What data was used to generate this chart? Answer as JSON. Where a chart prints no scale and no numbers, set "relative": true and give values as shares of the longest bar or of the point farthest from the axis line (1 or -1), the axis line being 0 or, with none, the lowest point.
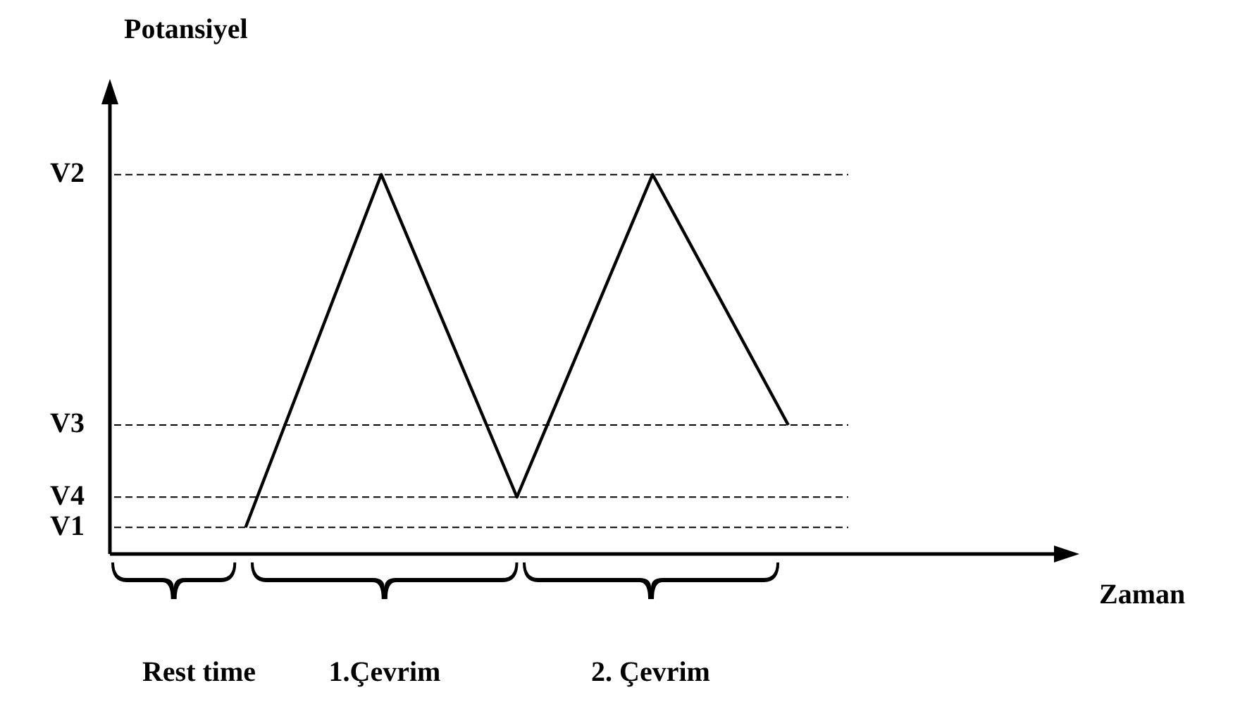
{
  "chart_data": {
    "type": "line",
    "relative": true,
    "xlabel": "Zaman",
    "ylabel": "Potansiyel",
    "categories": [
      null,
      null,
      null,
      null,
      null,
      null,
      null,
      null
    ],
    "series": [
      {
        "color": "#000000",
        "values": [
          null,
          0.07,
          1,
          0.15,
          1,
          0.34,
          null,
          null
        ]
      }
    ],
    "ref_lines": [
      {
        "axis": "y",
        "value": 1,
        "label": "V2",
        "color": "#000000",
        "line_style": "dashed"
      },
      {
        "axis": "y",
        "value": 0.34,
        "label": "V3",
        "color": "#000000",
        "line_style": "dashed"
      },
      {
        "axis": "y",
        "value": 0.15,
        "label": "V4",
        "color": "#000000",
        "line_style": "dashed"
      },
      {
        "axis": "y",
        "value": 0.07,
        "label": "V1",
        "color": "#000000",
        "line_style": "dashed"
      }
    ],
    "annotations": [
      "Rest time",
      "1.Çevrim",
      "2. Çevrim"
    ],
    "legend": false,
    "marker": "none",
    "line_style": "solid"
  }
}
